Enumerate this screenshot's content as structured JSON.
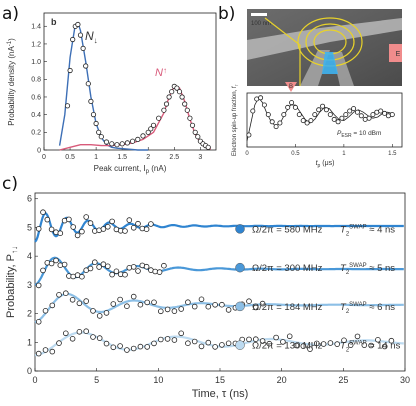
{
  "panel_labels": {
    "a": "a)",
    "b": "b)",
    "c": "c)"
  },
  "chart_data": [
    {
      "id": "a",
      "type": "line",
      "inner_label": "b",
      "xlabel": "Peak current, I",
      "xlabel_sub": "p",
      "xlabel_unit": " (nA)",
      "ylabel": "Probability density (nA",
      "ylabel_sup": "-1",
      "ylabel_end": ")",
      "xlim": [
        0,
        3.3
      ],
      "ylim": [
        0,
        1.55
      ],
      "xticks": [
        0,
        0.5,
        1,
        1.5,
        2,
        2.5,
        3
      ],
      "xtick_labels": [
        "0",
        "0.5",
        "1",
        "1.5",
        "2",
        "2.5",
        "3"
      ],
      "yticks": [
        0,
        0.2,
        0.4,
        0.6,
        0.8,
        1.0,
        1.2,
        1.4
      ],
      "ytick_labels": [
        "0",
        "0.2",
        "0.4",
        "0.6",
        "0.8",
        "1.0",
        "1.2",
        "1.4"
      ],
      "series": [
        {
          "name": "N",
          "name_sub": "↓",
          "color": "#3d6fb6",
          "x": [
            0.3,
            0.4,
            0.5,
            0.6,
            0.65,
            0.7,
            0.8,
            0.9,
            1.0,
            1.1,
            1.2,
            1.3,
            1.4,
            1.6,
            1.8,
            2.0
          ],
          "y": [
            0.05,
            0.4,
            1.05,
            1.42,
            1.44,
            1.35,
            1.0,
            0.6,
            0.3,
            0.14,
            0.06,
            0.03,
            0.02,
            0.01,
            0.0,
            0.0
          ]
        },
        {
          "name": "N",
          "name_sub": "↑",
          "color": "#d85a7a",
          "x": [
            0.3,
            0.5,
            0.7,
            0.9,
            1.1,
            1.3,
            1.5,
            1.7,
            1.9,
            2.1,
            2.3,
            2.4,
            2.5,
            2.6,
            2.7,
            2.8,
            2.9,
            3.0,
            3.1,
            3.2
          ],
          "y": [
            0.0,
            0.03,
            0.06,
            0.06,
            0.05,
            0.05,
            0.06,
            0.08,
            0.12,
            0.2,
            0.42,
            0.6,
            0.72,
            0.7,
            0.55,
            0.35,
            0.18,
            0.08,
            0.03,
            0.01
          ]
        }
      ],
      "points": {
        "x": [
          0.45,
          0.5,
          0.55,
          0.6,
          0.65,
          0.7,
          0.75,
          0.8,
          0.85,
          0.9,
          0.95,
          1.0,
          1.05,
          1.1,
          1.2,
          1.3,
          1.4,
          1.5,
          1.6,
          1.7,
          1.8,
          1.9,
          2.0,
          2.05,
          2.1,
          2.2,
          2.3,
          2.35,
          2.4,
          2.45,
          2.5,
          2.55,
          2.6,
          2.65,
          2.7,
          2.75,
          2.8,
          2.85,
          2.9,
          2.95,
          3.0,
          3.05,
          3.1,
          3.15
        ],
        "y": [
          0.5,
          0.9,
          1.25,
          1.4,
          1.42,
          1.3,
          1.15,
          0.95,
          0.75,
          0.55,
          0.4,
          0.3,
          0.2,
          0.15,
          0.09,
          0.07,
          0.06,
          0.07,
          0.08,
          0.1,
          0.12,
          0.16,
          0.2,
          0.24,
          0.28,
          0.36,
          0.45,
          0.52,
          0.6,
          0.66,
          0.72,
          0.7,
          0.66,
          0.6,
          0.52,
          0.45,
          0.36,
          0.28,
          0.2,
          0.15,
          0.1,
          0.07,
          0.05,
          0.03
        ]
      }
    },
    {
      "id": "b",
      "type": "line",
      "image_scale": "100 nm",
      "image_electrodes": [
        "E",
        "B"
      ],
      "xlabel": "t",
      "xlabel_sub": "p",
      "xlabel_unit": " (μs)",
      "ylabel": "Electron spin-up fraction, f",
      "ylabel_sub": "↑",
      "annotation": "P",
      "annotation_sub": "ESR",
      "annotation_end": " = 10 dBm",
      "xlim": [
        0,
        1.6
      ],
      "ylim": [
        0.15,
        0.6
      ],
      "xticks": [
        0,
        0.5,
        1,
        1.5
      ],
      "xtick_labels": [
        "0",
        "0.5",
        "1",
        "1.5"
      ],
      "fit": {
        "x": [
          0,
          0.04,
          0.08,
          0.12,
          0.16,
          0.2,
          0.25,
          0.3,
          0.35,
          0.4,
          0.45,
          0.5,
          0.55,
          0.6,
          0.65,
          0.7,
          0.75,
          0.8,
          0.85,
          0.9,
          0.95,
          1.0,
          1.05,
          1.1,
          1.15,
          1.2,
          1.25,
          1.3,
          1.35,
          1.4,
          1.45,
          1.5
        ],
        "y": [
          0.2,
          0.35,
          0.5,
          0.56,
          0.52,
          0.44,
          0.36,
          0.32,
          0.36,
          0.44,
          0.5,
          0.5,
          0.44,
          0.38,
          0.35,
          0.38,
          0.44,
          0.48,
          0.47,
          0.42,
          0.38,
          0.37,
          0.4,
          0.44,
          0.46,
          0.44,
          0.41,
          0.39,
          0.4,
          0.43,
          0.44,
          0.43
        ]
      },
      "points": {
        "x": [
          0.02,
          0.06,
          0.1,
          0.14,
          0.18,
          0.22,
          0.26,
          0.3,
          0.34,
          0.38,
          0.42,
          0.46,
          0.5,
          0.54,
          0.58,
          0.62,
          0.66,
          0.7,
          0.74,
          0.78,
          0.82,
          0.86,
          0.9,
          0.94,
          0.98,
          1.02,
          1.06,
          1.1,
          1.14,
          1.18,
          1.22,
          1.26,
          1.3,
          1.34,
          1.38,
          1.42,
          1.46,
          1.5
        ],
        "y": [
          0.25,
          0.45,
          0.55,
          0.56,
          0.5,
          0.42,
          0.36,
          0.32,
          0.35,
          0.42,
          0.48,
          0.52,
          0.48,
          0.42,
          0.37,
          0.35,
          0.37,
          0.42,
          0.46,
          0.49,
          0.46,
          0.42,
          0.38,
          0.36,
          0.39,
          0.42,
          0.45,
          0.47,
          0.44,
          0.41,
          0.38,
          0.39,
          0.42,
          0.44,
          0.45,
          0.43,
          0.41,
          0.42
        ]
      }
    },
    {
      "id": "c",
      "type": "line",
      "xlabel": "Time, τ (ns)",
      "ylabel": "Probability, P",
      "ylabel_sub": "↑↓",
      "xlim": [
        0,
        30
      ],
      "ylim": [
        0,
        6.2
      ],
      "xticks": [
        0,
        5,
        10,
        15,
        20,
        25,
        30
      ],
      "xtick_labels": [
        "0",
        "5",
        "10",
        "15",
        "20",
        "25",
        "30"
      ],
      "yticks": [
        0,
        1,
        2,
        3,
        4,
        5,
        6
      ],
      "ytick_labels": [
        "0",
        "1",
        "2",
        "3",
        "4",
        "5",
        "6"
      ],
      "series": [
        {
          "freq_label": "Ω/2π = 580 MHz",
          "t2_label": "T",
          "t2_sub": "2",
          "t2_sup": "SWAP",
          "t2_end": " ≈ 4 ns",
          "color": "#2f84d0",
          "offset": 4.5,
          "amp": 0.55,
          "freq": 0.58,
          "tau": 4,
          "fit_end": 30,
          "pts_end": 9.5
        },
        {
          "freq_label": "Ω/2π = 300 MHz",
          "t2_label": "T",
          "t2_sub": "2",
          "t2_sup": "SWAP",
          "t2_end": " ≈ 5 ns",
          "color": "#4a98d8",
          "offset": 3.0,
          "amp": 0.55,
          "freq": 0.3,
          "tau": 5,
          "fit_end": 30,
          "pts_end": 10.5
        },
        {
          "freq_label": "Ω/2π = 184 MHz",
          "t2_label": "T",
          "t2_sub": "2",
          "t2_sup": "SWAP",
          "t2_end": " ≈ 6 ns",
          "color": "#8cbfe6",
          "offset": 1.7,
          "amp": 0.6,
          "freq": 0.184,
          "tau": 6,
          "fit_end": 30,
          "pts_end": 19
        },
        {
          "freq_label": "Ω/2π = 130 MHz",
          "t2_label": "T",
          "t2_sub": "2",
          "t2_sup": "SWAP",
          "t2_end": " ≈ 14 ns",
          "color": "#bcdaf0",
          "offset": 0.55,
          "amp": 0.45,
          "freq": 0.13,
          "tau": 14,
          "fit_end": 30,
          "pts_end": 29
        }
      ]
    }
  ]
}
